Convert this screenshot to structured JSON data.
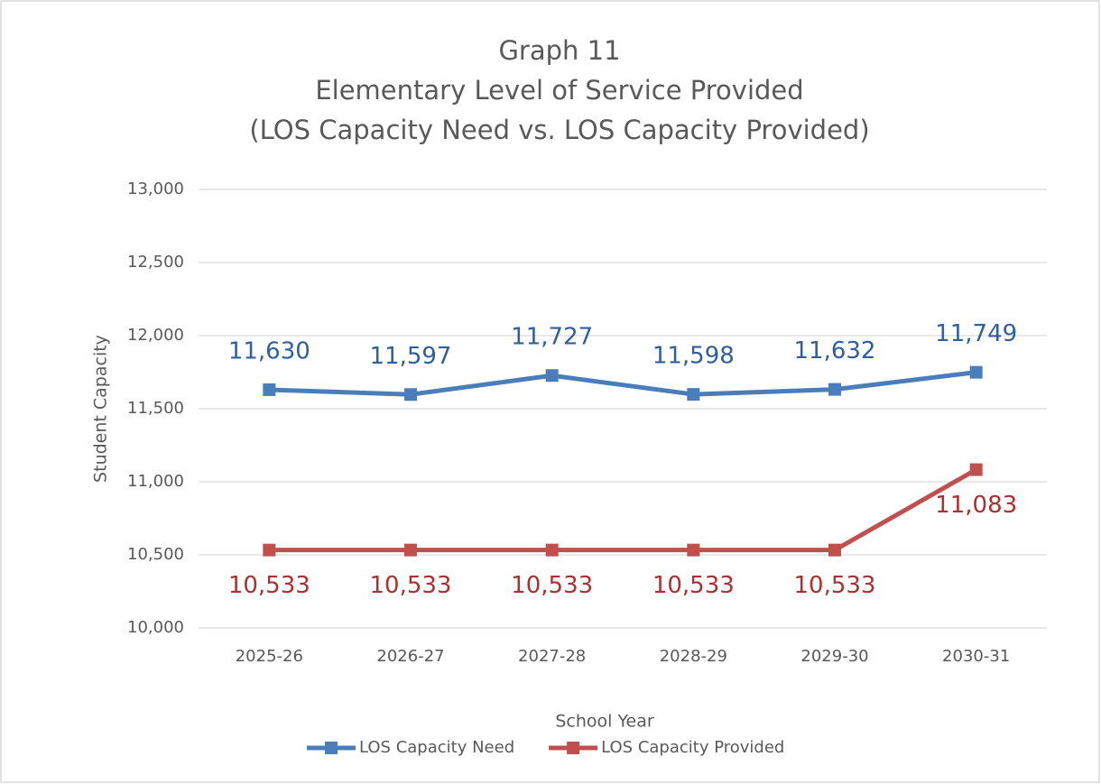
{
  "chart_data": {
    "type": "line",
    "title": [
      "Graph 11",
      "Elementary Level of Service Provided",
      "(LOS Capacity Need vs. LOS Capacity Provided)"
    ],
    "x_label": "School Year",
    "y_label": "Student Capacity",
    "categories": [
      "2025-26",
      "2026-27",
      "2027-28",
      "2028-29",
      "2029-30",
      "2030-31"
    ],
    "series": [
      {
        "name": "LOS Capacity Need",
        "color": "#4a7ebb",
        "label_color": "#2f5f9e",
        "values": [
          11630,
          11597,
          11727,
          11598,
          11632,
          11749
        ],
        "value_labels": [
          "11,630",
          "11,597",
          "11,727",
          "11,598",
          "11,632",
          "11,749"
        ]
      },
      {
        "name": "LOS Capacity Provided",
        "color": "#c0504d",
        "label_color": "#a83232",
        "values": [
          10533,
          10533,
          10533,
          10533,
          10533,
          11083
        ],
        "value_labels": [
          "10,533",
          "10,533",
          "10,533",
          "10,533",
          "10,533",
          "11,083"
        ]
      }
    ],
    "ylim": [
      10000,
      13000
    ],
    "yticks": [
      {
        "value": 10000,
        "label": "10,000"
      },
      {
        "value": 10500,
        "label": "10,500"
      },
      {
        "value": 11000,
        "label": "11,000"
      },
      {
        "value": 11500,
        "label": "11,500"
      },
      {
        "value": 12000,
        "label": "12,000"
      },
      {
        "value": 12500,
        "label": "12,500"
      },
      {
        "value": 13000,
        "label": "13,000"
      }
    ],
    "grid": true,
    "legend": "bottom"
  }
}
